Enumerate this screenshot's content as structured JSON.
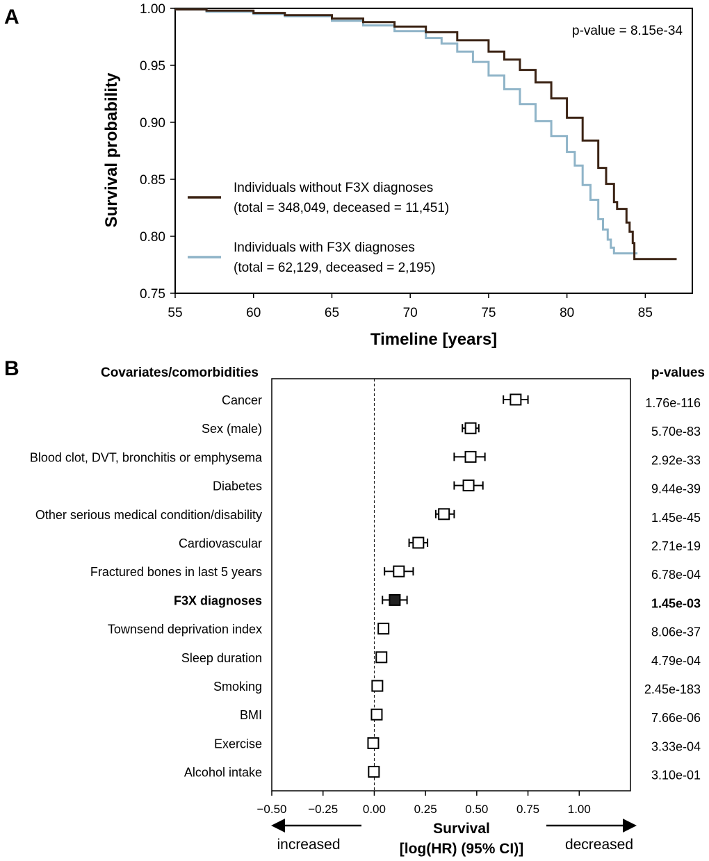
{
  "chart_data": [
    {
      "panel": "A",
      "type": "line",
      "xlabel": "Timeline [years]",
      "ylabel": "Survival probability",
      "xlim": [
        55,
        88
      ],
      "ylim": [
        0.75,
        1.0
      ],
      "xticks": [
        55,
        60,
        65,
        70,
        75,
        80,
        85
      ],
      "yticks": [
        0.75,
        0.8,
        0.85,
        0.9,
        0.95,
        1.0
      ],
      "ytick_labels": [
        "0.75",
        "0.80",
        "0.85",
        "0.90",
        "0.95",
        "1.00"
      ],
      "annotation": "p-value = 8.15e-34",
      "legend_position": "lower-left",
      "series": [
        {
          "name": "Individuals without F3X diagnoses",
          "detail": "(total = 348,049, deceased = 11,451)",
          "color": "#3b2314",
          "x": [
            55,
            57,
            60,
            62,
            65,
            67,
            69,
            71,
            73,
            75,
            76,
            77,
            78,
            79,
            80,
            81,
            82,
            82.5,
            83,
            83.2,
            83.5,
            83.8,
            84,
            84.1,
            84.2,
            84.3,
            84.5,
            85,
            87
          ],
          "y": [
            0.999,
            0.998,
            0.996,
            0.994,
            0.991,
            0.988,
            0.984,
            0.979,
            0.972,
            0.962,
            0.955,
            0.946,
            0.935,
            0.921,
            0.904,
            0.884,
            0.86,
            0.846,
            0.83,
            0.824,
            0.824,
            0.812,
            0.804,
            0.804,
            0.794,
            0.78,
            0.78,
            0.78,
            0.78
          ]
        },
        {
          "name": "Individuals with F3X diagnoses",
          "detail": "(total = 62,129, deceased = 2,195)",
          "color": "#8fb4c8",
          "x": [
            55,
            57,
            60,
            62,
            65,
            67,
            69,
            71,
            72,
            73,
            74,
            75,
            76,
            77,
            78,
            79,
            80,
            80.5,
            81,
            81.5,
            82,
            82.3,
            82.6,
            82.8,
            83,
            83.5,
            84,
            84.5
          ],
          "y": [
            0.999,
            0.997,
            0.995,
            0.993,
            0.989,
            0.985,
            0.98,
            0.974,
            0.969,
            0.962,
            0.953,
            0.941,
            0.929,
            0.916,
            0.901,
            0.888,
            0.874,
            0.862,
            0.845,
            0.832,
            0.815,
            0.806,
            0.797,
            0.79,
            0.785,
            0.785,
            0.785,
            0.785
          ]
        }
      ]
    },
    {
      "panel": "B",
      "type": "scatter",
      "subtype": "forest",
      "column_header_left": "Covariates/comorbidities",
      "column_header_right": "p-values",
      "xlabel": "Survival",
      "xlabel_line2": "[log(HR) (95% CI)]",
      "xlim": [
        -0.5,
        1.25
      ],
      "xticks": [
        -0.5,
        -0.25,
        0.0,
        0.25,
        0.5,
        0.75,
        1.0
      ],
      "xtick_labels": [
        "−0.50",
        "−0.25",
        "0.00",
        "0.25",
        "0.50",
        "0.75",
        "1.00"
      ],
      "arrow_left_label": "increased",
      "arrow_right_label": "decreased",
      "reference_line": 0.0,
      "rows": [
        {
          "label": "Cancer",
          "coef": 0.69,
          "lo": 0.63,
          "hi": 0.75,
          "p": "1.76e-116",
          "bold": false
        },
        {
          "label": "Sex (male)",
          "coef": 0.47,
          "lo": 0.43,
          "hi": 0.51,
          "p": "5.70e-83",
          "bold": false
        },
        {
          "label": "Blood clot, DVT, bronchitis or emphysema",
          "coef": 0.47,
          "lo": 0.39,
          "hi": 0.54,
          "p": "2.92e-33",
          "bold": false
        },
        {
          "label": "Diabetes",
          "coef": 0.46,
          "lo": 0.39,
          "hi": 0.53,
          "p": "9.44e-39",
          "bold": false
        },
        {
          "label": "Other serious medical condition/disability",
          "coef": 0.34,
          "lo": 0.3,
          "hi": 0.39,
          "p": "1.45e-45",
          "bold": false
        },
        {
          "label": "Cardiovascular",
          "coef": 0.215,
          "lo": 0.17,
          "hi": 0.26,
          "p": "2.71e-19",
          "bold": false
        },
        {
          "label": "Fractured bones in last 5 years",
          "coef": 0.12,
          "lo": 0.05,
          "hi": 0.19,
          "p": "6.78e-04",
          "bold": false
        },
        {
          "label": "F3X diagnoses",
          "coef": 0.1,
          "lo": 0.04,
          "hi": 0.16,
          "p": "1.45e-03",
          "bold": true
        },
        {
          "label": "Townsend deprivation index",
          "coef": 0.045,
          "lo": 0.035,
          "hi": 0.055,
          "p": "8.06e-37",
          "bold": false
        },
        {
          "label": "Sleep duration",
          "coef": 0.035,
          "lo": 0.025,
          "hi": 0.045,
          "p": "4.79e-04",
          "bold": false
        },
        {
          "label": "Smoking",
          "coef": 0.015,
          "lo": 0.01,
          "hi": 0.02,
          "p": "2.45e-183",
          "bold": false
        },
        {
          "label": "BMI",
          "coef": 0.012,
          "lo": 0.007,
          "hi": 0.017,
          "p": "7.66e-06",
          "bold": false
        },
        {
          "label": "Exercise",
          "coef": -0.005,
          "lo": -0.01,
          "hi": 0.0,
          "p": "3.33e-04",
          "bold": false
        },
        {
          "label": "Alcohol intake",
          "coef": -0.002,
          "lo": -0.006,
          "hi": 0.002,
          "p": "3.10e-01",
          "bold": false
        }
      ]
    }
  ],
  "panel_labels": {
    "a": "A",
    "b": "B"
  }
}
